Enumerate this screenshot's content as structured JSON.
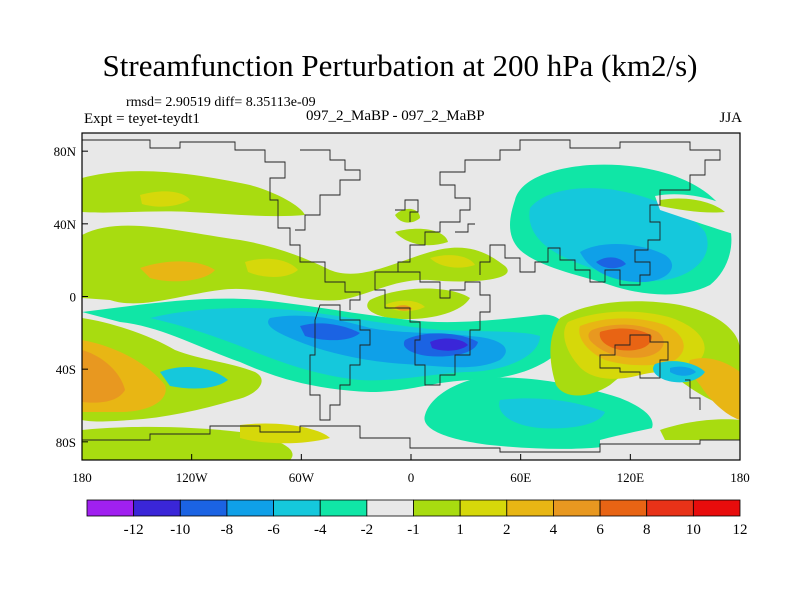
{
  "chart_data": {
    "type": "heatmap",
    "title": "Streamfunction Perturbation at 200 hPa (km2/s)",
    "stats_text": "rmsd= 2.90519 diff= 8.35113e-09",
    "experiment_text": "Expt = teyet-teydt1",
    "case_text": "097_2_MaBP - 097_2_MaBP",
    "season": "JJA",
    "x_ticks": [
      "180",
      "120W",
      "60W",
      "0",
      "60E",
      "120E",
      "180"
    ],
    "y_ticks": [
      "80N",
      "40N",
      "0",
      "40S",
      "80S"
    ],
    "xlim": [
      -180,
      180
    ],
    "ylim": [
      -90,
      90
    ],
    "colorbar": {
      "levels": [
        -12,
        -10,
        -8,
        -6,
        -4,
        -2,
        -1,
        1,
        2,
        4,
        6,
        8,
        10,
        12
      ],
      "labels": [
        "-12",
        "-10",
        "-8",
        "-6",
        "-4",
        "-2",
        "-1",
        "1",
        "2",
        "4",
        "6",
        "8",
        "10",
        "12"
      ],
      "colors": [
        "#a020f0",
        "#3a26d8",
        "#1b63e3",
        "#0fa0e8",
        "#15c8dc",
        "#10e6a6",
        "#e8e8e8",
        "#a8dc10",
        "#d6d80a",
        "#e8b614",
        "#e89820",
        "#e86414",
        "#e83218",
        "#e80c0c"
      ]
    },
    "features": [
      {
        "lon": 25,
        "lat": -27,
        "value": -11,
        "rx": 14,
        "ry": 5
      },
      {
        "lon": 25,
        "lat": -27,
        "value": -8,
        "rx": 35,
        "ry": 10
      },
      {
        "lon": 120,
        "lat": -20,
        "value": 9,
        "rx": 30,
        "ry": 12
      }
    ]
  }
}
